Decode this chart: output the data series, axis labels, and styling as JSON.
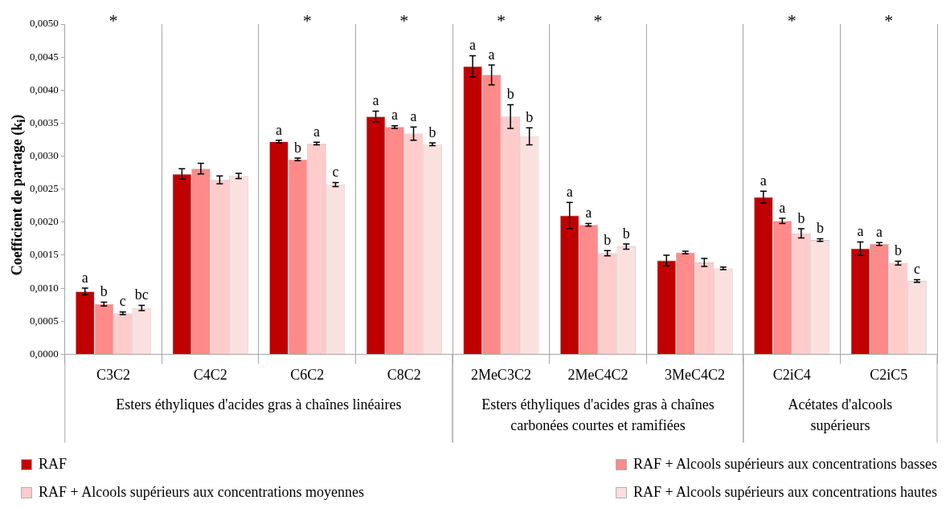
{
  "chart_data": {
    "type": "bar",
    "ylabel": "Coefficient de partage (k$_{i}$)",
    "categories": [
      "C3C2",
      "C4C2",
      "C6C2",
      "C8C2",
      "2MeC3C2",
      "2MeC4C2",
      "3MeC4C2",
      "C2iC4",
      "C2iC5"
    ],
    "ylim": [
      0,
      0.005
    ],
    "yticks": [
      {
        "value": 0,
        "label": "0,0000"
      },
      {
        "value": 0.0005,
        "label": "0,0005"
      },
      {
        "value": 0.001,
        "label": "0,0010"
      },
      {
        "value": 0.0015,
        "label": "0,0015"
      },
      {
        "value": 0.002,
        "label": "0,0020"
      },
      {
        "value": 0.0025,
        "label": "0,0025"
      },
      {
        "value": 0.003,
        "label": "0,0030"
      },
      {
        "value": 0.0035,
        "label": "0,0035"
      },
      {
        "value": 0.004,
        "label": "0,0040"
      },
      {
        "value": 0.0045,
        "label": "0,0045"
      },
      {
        "value": 0.005,
        "label": "0,0050"
      }
    ],
    "grid": "x",
    "legend": "bottom",
    "series": [
      {
        "name": "RAF",
        "color": "#c00000",
        "values": [
          0.00095,
          0.00273,
          0.00322,
          0.0036,
          0.00436,
          0.0021,
          0.00142,
          0.00238,
          0.0016
        ],
        "errors": [
          5e-05,
          8e-05,
          2e-05,
          8e-05,
          0.00016,
          0.0002,
          8e-05,
          9e-05,
          0.0001
        ],
        "value_labels": [
          "a",
          null,
          "a",
          "a",
          "a",
          "a",
          null,
          "a",
          "a"
        ]
      },
      {
        "name": "RAF + Alcools supérieurs aux concentrations basses",
        "color": "#ff8a8a",
        "values": [
          0.00076,
          0.00281,
          0.00295,
          0.00344,
          0.00423,
          0.00196,
          0.00154,
          0.00202,
          0.00167
        ],
        "errors": [
          3e-05,
          8e-05,
          2e-05,
          2e-05,
          0.00015,
          2e-05,
          2e-05,
          4e-05,
          2e-05
        ],
        "value_labels": [
          "b",
          null,
          "b",
          "a",
          "a",
          "a",
          null,
          "a",
          "a"
        ]
      },
      {
        "name": "RAF + Alcools supérieurs aux concentrations moyennes",
        "color": "#ffcccc",
        "values": [
          0.00062,
          0.00264,
          0.00319,
          0.00334,
          0.0036,
          0.00153,
          0.00139,
          0.00183,
          0.00138
        ],
        "errors": [
          2e-05,
          6e-05,
          2e-05,
          0.0001,
          0.00018,
          4e-05,
          6e-05,
          7e-05,
          3e-05
        ],
        "value_labels": [
          "c",
          null,
          "a",
          "a",
          "b",
          "b",
          null,
          "b",
          "b"
        ]
      },
      {
        "name": "RAF + Alcools supérieurs aux concentrations hautes",
        "color": "#fbe0e0",
        "values": [
          0.0007,
          0.0027,
          0.00257,
          0.00318,
          0.0033,
          0.00163,
          0.0013,
          0.00173,
          0.00111
        ],
        "errors": [
          4e-05,
          4e-05,
          3e-05,
          2e-05,
          0.00013,
          4e-05,
          2e-05,
          2e-05,
          2e-05
        ],
        "value_labels": [
          "bc",
          null,
          "c",
          "b",
          "b",
          "b",
          null,
          "b",
          "c"
        ]
      }
    ],
    "annotations": [
      "*",
      "*",
      "*",
      "*",
      "*",
      "*",
      "*",
      "Esters éthyliques d'acides gras à chaînes linéaires",
      "Esters éthyliques d'acides gras à chaînes carbonées courtes et ramifiées",
      "Acétates d'alcools supérieurs"
    ]
  }
}
